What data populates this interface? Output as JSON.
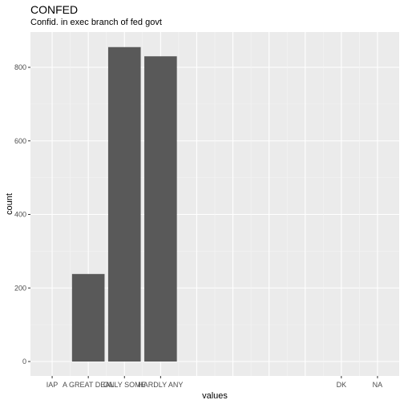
{
  "chart_data": {
    "type": "bar",
    "title": "CONFED",
    "subtitle": "Confid. in exec branch of fed govt",
    "xlabel": "values",
    "ylabel": "count",
    "ylim": [
      0,
      880
    ],
    "yticks": [
      0,
      200,
      400,
      600,
      800
    ],
    "grid": true,
    "categories": [
      "IAP",
      "A GREAT DEAL",
      "ONLY SOME",
      "HARDLY ANY",
      "DK",
      "NA"
    ],
    "x_positions": [
      0,
      1,
      2,
      3,
      8,
      9
    ],
    "xlim": [
      -0.6,
      9.6
    ],
    "values": [
      0,
      238,
      855,
      830,
      0,
      0
    ],
    "bar_color": "#595959",
    "panel_color": "#ebebeb"
  }
}
